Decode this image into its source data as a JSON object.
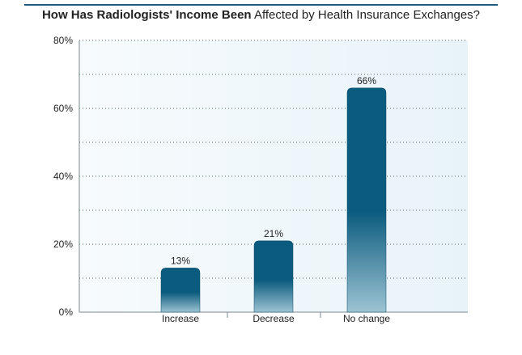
{
  "header": {
    "title_bold": "How Has Radiologists' Income Been",
    "title_rest": "Affected by Health Insurance Exchanges?"
  },
  "colors": {
    "bar_top": "#0b5b7e",
    "bar_bottom": "#9cc3d3",
    "plot_bg_left": "#f7fbfd",
    "plot_bg_right": "#e8f3f9",
    "grid": "#4a6470",
    "axis": "#7a8a92",
    "title_rule": "#1d5c7e"
  },
  "chart_data": {
    "type": "bar",
    "title": "How Has Radiologists' Income Been Affected by Health Insurance Exchanges?",
    "categories": [
      "Increase",
      "Decrease",
      "No change"
    ],
    "values": [
      13,
      21,
      66
    ],
    "value_labels": [
      "13%",
      "21%",
      "66%"
    ],
    "ylim": [
      0,
      80
    ],
    "yticks": [
      0,
      20,
      40,
      60,
      80
    ],
    "ytick_labels": [
      "0%",
      "20%",
      "40%",
      "60%",
      "80%"
    ],
    "minor_gridlines": [
      10,
      30,
      50,
      70
    ],
    "grid": true,
    "xlabel": "",
    "ylabel": ""
  }
}
